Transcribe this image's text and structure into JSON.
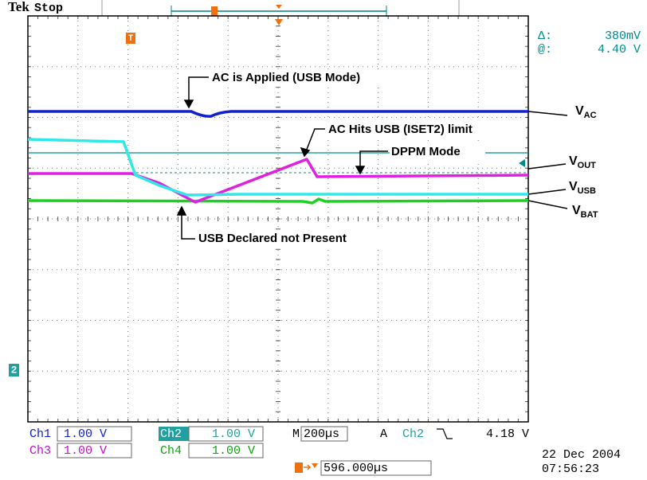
{
  "header": {
    "brand": "Tek",
    "status": "Stop"
  },
  "cursor_readout": {
    "delta_label": "Δ:",
    "delta_value": "380mV",
    "at_label": "@:",
    "at_value": "4.40 V"
  },
  "annotations": [
    "AC is Applied (USB Mode)",
    "AC Hits USB (ISET2) limit",
    "DPPM Mode",
    "USB Declared not Present"
  ],
  "trace_labels": [
    {
      "main": "V",
      "sub": "AC"
    },
    {
      "main": "V",
      "sub": "OUT"
    },
    {
      "main": "V",
      "sub": "USB"
    },
    {
      "main": "V",
      "sub": "BAT"
    }
  ],
  "markers": {
    "trigger": "T",
    "channel": "2"
  },
  "status_bar": {
    "ch1": {
      "name": "Ch1",
      "scale": "1.00 V"
    },
    "ch2": {
      "name": "Ch2",
      "scale": "1.00 V"
    },
    "ch3": {
      "name": "Ch3",
      "scale": "1.00 V"
    },
    "ch4": {
      "name": "Ch4",
      "scale": "1.00 V"
    },
    "timebase": {
      "prefix": "M",
      "value": "200µs"
    },
    "trigger": {
      "prefix": "A",
      "source": "Ch2",
      "level": "4.18 V"
    },
    "trigger_position": "596.000µs"
  },
  "timestamp": {
    "date": "22 Dec 2004",
    "time": "07:56:23"
  }
}
